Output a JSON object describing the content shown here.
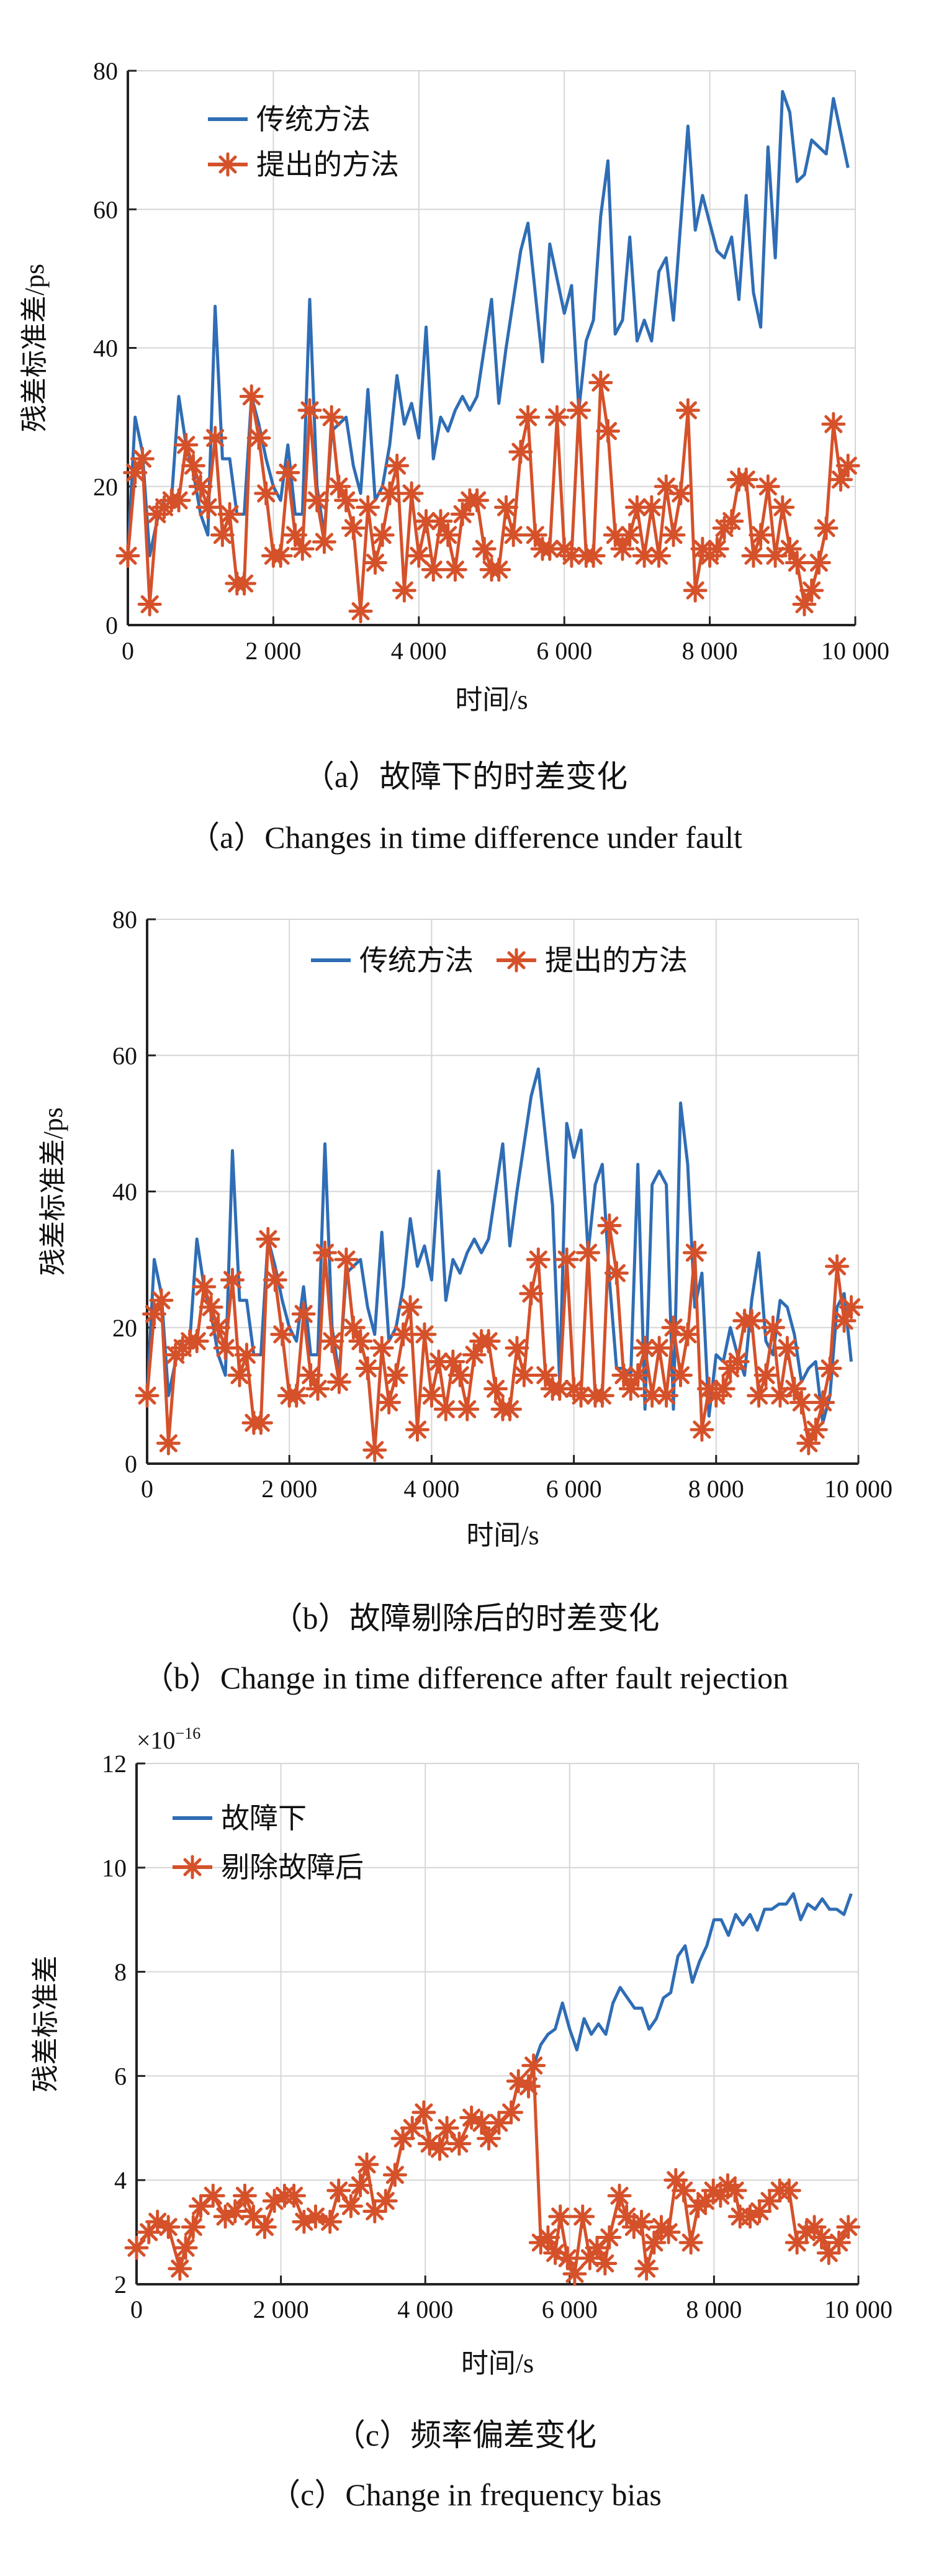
{
  "colors": {
    "traditional": "#2f6db5",
    "proposed": "#d5512a"
  },
  "chart_data": [
    {
      "type": "line",
      "id": "a",
      "xlabel": "时间/s",
      "ylabel": "残差标准差/ps",
      "xlim": [
        0,
        10000
      ],
      "ylim": [
        0,
        80
      ],
      "xticks": [
        0,
        2000,
        4000,
        6000,
        8000,
        10000
      ],
      "xtick_labels": [
        "0",
        "2 000",
        "4 000",
        "6 000",
        "8 000",
        "10 000"
      ],
      "yticks": [
        0,
        20,
        40,
        60,
        80
      ],
      "ytick_labels": [
        "0",
        "20",
        "40",
        "60",
        "80"
      ],
      "grid": true,
      "legend_position": "top-left",
      "caption_cn": "（a）故障下的时差变化",
      "caption_en": "（a）Changes in time difference under fault",
      "series": [
        {
          "name": "传统方法",
          "marker": "none",
          "x_start": 0,
          "x_step": 100,
          "values": [
            10,
            30,
            25,
            10,
            15,
            18,
            18,
            33,
            26,
            22,
            16,
            13,
            46,
            24,
            24,
            16,
            16,
            33,
            29,
            24,
            20,
            18,
            26,
            16,
            16,
            47,
            20,
            13,
            28,
            29,
            30,
            23,
            19,
            34,
            18,
            20,
            26,
            36,
            29,
            32,
            27,
            43,
            24,
            30,
            28,
            31,
            33,
            31,
            33,
            40,
            47,
            32,
            40,
            47,
            54,
            58,
            48,
            38,
            55,
            50,
            45,
            49,
            31,
            41,
            44,
            59,
            67,
            42,
            44,
            56,
            41,
            44,
            41,
            51,
            53,
            44,
            58,
            72,
            57,
            62,
            58,
            54,
            53,
            56,
            47,
            62,
            48,
            43,
            69,
            53,
            77,
            74,
            64,
            65,
            70,
            69,
            68,
            76,
            71,
            66
          ]
        },
        {
          "name": "提出的方法",
          "marker": "asterisk",
          "x_start": 0,
          "x_step": 100,
          "values": [
            10,
            22,
            24,
            3,
            16,
            17,
            18,
            18,
            26,
            23,
            20,
            17,
            27,
            13,
            16,
            6,
            6,
            33,
            27,
            19,
            10,
            10,
            22,
            13,
            11,
            31,
            18,
            12,
            30,
            20,
            18,
            14,
            2,
            17,
            9,
            13,
            19,
            23,
            5,
            19,
            10,
            15,
            8,
            15,
            13,
            8,
            16,
            18,
            18,
            11,
            8,
            8,
            17,
            13,
            25,
            30,
            13,
            11,
            11,
            30,
            11,
            10,
            31,
            10,
            10,
            35,
            28,
            13,
            11,
            13,
            17,
            10,
            17,
            10,
            20,
            13,
            19,
            31,
            5,
            11,
            10,
            11,
            14,
            15,
            21,
            21,
            10,
            13,
            20,
            10,
            17,
            11,
            9,
            3,
            5,
            9,
            14,
            29,
            21,
            23
          ]
        }
      ]
    },
    {
      "type": "line",
      "id": "b",
      "xlabel": "时间/s",
      "ylabel": "残差标准差/ps",
      "xlim": [
        0,
        10000
      ],
      "ylim": [
        0,
        80
      ],
      "xticks": [
        0,
        2000,
        4000,
        6000,
        8000,
        10000
      ],
      "xtick_labels": [
        "0",
        "2 000",
        "4 000",
        "6 000",
        "8 000",
        "10 000"
      ],
      "yticks": [
        0,
        20,
        40,
        60,
        80
      ],
      "ytick_labels": [
        "0",
        "20",
        "40",
        "60",
        "80"
      ],
      "grid": true,
      "legend_position": "top-center",
      "caption_cn": "（b）故障剔除后的时差变化",
      "caption_en": "（b）Change in time difference after fault rejection",
      "series": [
        {
          "name": "传统方法",
          "marker": "none",
          "x_start": 0,
          "x_step": 100,
          "values": [
            10,
            30,
            25,
            10,
            15,
            18,
            18,
            33,
            26,
            22,
            16,
            13,
            46,
            24,
            24,
            16,
            16,
            33,
            29,
            24,
            20,
            18,
            26,
            16,
            16,
            47,
            20,
            13,
            28,
            29,
            30,
            23,
            19,
            34,
            18,
            20,
            26,
            36,
            29,
            32,
            27,
            43,
            24,
            30,
            28,
            31,
            33,
            31,
            33,
            40,
            47,
            32,
            40,
            47,
            54,
            58,
            48,
            38,
            12,
            50,
            45,
            49,
            31,
            41,
            44,
            27,
            14,
            14,
            13,
            44,
            8,
            41,
            43,
            41,
            8,
            53,
            44,
            23,
            28,
            7,
            16,
            15,
            20,
            16,
            13,
            24,
            31,
            18,
            16,
            24,
            23,
            19,
            12,
            14,
            15,
            6,
            10,
            23,
            25,
            15
          ]
        },
        {
          "name": "提出的方法",
          "marker": "asterisk",
          "x_start": 0,
          "x_step": 100,
          "values": [
            10,
            22,
            24,
            3,
            16,
            17,
            18,
            18,
            26,
            23,
            20,
            17,
            27,
            13,
            16,
            6,
            6,
            33,
            27,
            19,
            10,
            10,
            22,
            13,
            11,
            31,
            18,
            12,
            30,
            20,
            18,
            14,
            2,
            17,
            9,
            13,
            19,
            23,
            5,
            19,
            10,
            15,
            8,
            15,
            13,
            8,
            16,
            18,
            18,
            11,
            8,
            8,
            17,
            13,
            25,
            30,
            13,
            11,
            11,
            30,
            11,
            10,
            31,
            10,
            10,
            35,
            28,
            13,
            11,
            13,
            17,
            10,
            17,
            10,
            20,
            13,
            19,
            31,
            5,
            11,
            10,
            11,
            14,
            15,
            21,
            21,
            10,
            13,
            20,
            10,
            17,
            11,
            9,
            3,
            5,
            9,
            14,
            29,
            21,
            23
          ]
        }
      ]
    },
    {
      "type": "line",
      "id": "c",
      "xlabel": "时间/s",
      "ylabel": "残差标准差",
      "y_multiplier_base": "×10",
      "y_multiplier_exp": "−16",
      "xlim": [
        0,
        10000
      ],
      "ylim": [
        2,
        12
      ],
      "xticks": [
        0,
        2000,
        4000,
        6000,
        8000,
        10000
      ],
      "xtick_labels": [
        "0",
        "2 000",
        "4 000",
        "6 000",
        "8 000",
        "10 000"
      ],
      "yticks": [
        2,
        4,
        6,
        8,
        10,
        12
      ],
      "ytick_labels": [
        "2",
        "4",
        "6",
        "8",
        "10",
        "12"
      ],
      "grid": true,
      "legend_position": "top-left",
      "caption_cn": "（c）频率偏差变化",
      "caption_en": "（c）Change in frequency bias",
      "series": [
        {
          "name": "故障下",
          "marker": "none",
          "x": [
            5500,
            5600,
            5700,
            5800,
            5900,
            6000,
            6100,
            6200,
            6300,
            6400,
            6500,
            6600,
            6700,
            6800,
            6900,
            7000,
            7100,
            7200,
            7300,
            7400,
            7500,
            7600,
            7700,
            7800,
            7900,
            8000,
            8100,
            8200,
            8300,
            8400,
            8500,
            8600,
            8700,
            8800,
            8900,
            9000,
            9100,
            9200,
            9300,
            9400,
            9500,
            9600,
            9700,
            9800,
            9900
          ],
          "values": [
            6.2,
            6.6,
            6.8,
            6.9,
            7.4,
            6.9,
            6.5,
            7.1,
            6.8,
            7.0,
            6.8,
            7.4,
            7.7,
            7.5,
            7.3,
            7.3,
            6.9,
            7.1,
            7.5,
            7.6,
            8.3,
            8.5,
            7.8,
            8.2,
            8.5,
            9.0,
            9.0,
            8.7,
            9.1,
            8.9,
            9.1,
            8.8,
            9.2,
            9.2,
            9.3,
            9.3,
            9.5,
            9.0,
            9.3,
            9.2,
            9.4,
            9.2,
            9.2,
            9.1,
            9.5
          ]
        },
        {
          "name": "剔除故障后",
          "marker": "asterisk",
          "x": [
            0,
            170,
            290,
            440,
            600,
            680,
            785,
            890,
            1060,
            1230,
            1365,
            1500,
            1620,
            1775,
            1910,
            2050,
            2180,
            2320,
            2480,
            2680,
            2800,
            2970,
            3100,
            3190,
            3300,
            3450,
            3580,
            3690,
            3820,
            3980,
            4060,
            4200,
            4300,
            4470,
            4640,
            4780,
            4880,
            5020,
            5190,
            5290,
            5430,
            5500,
            5600,
            5700,
            5800,
            5870,
            5970,
            6070,
            6180,
            6280,
            6380,
            6490,
            6550,
            6690,
            6790,
            6890,
            6995,
            7065,
            7170,
            7270,
            7370,
            7470,
            7580,
            7680,
            7780,
            7880,
            7990,
            8090,
            8190,
            8290,
            8360,
            8500,
            8630,
            8770,
            8910,
            9040,
            9150,
            9280,
            9390,
            9490,
            9590,
            9730,
            9860
          ],
          "values": [
            2.7,
            3.0,
            3.2,
            3.1,
            2.3,
            2.7,
            3.1,
            3.5,
            3.7,
            3.3,
            3.4,
            3.7,
            3.3,
            3.1,
            3.6,
            3.7,
            3.7,
            3.2,
            3.3,
            3.2,
            3.8,
            3.5,
            3.9,
            4.3,
            3.4,
            3.6,
            4.1,
            4.8,
            5.0,
            5.3,
            4.7,
            4.6,
            5.0,
            4.7,
            5.2,
            5.1,
            4.8,
            5.1,
            5.3,
            5.9,
            5.8,
            6.2,
            2.8,
            2.9,
            2.6,
            3.3,
            2.5,
            2.2,
            3.3,
            2.5,
            2.7,
            2.4,
            2.9,
            3.7,
            3.3,
            3.1,
            3.2,
            2.3,
            2.8,
            3.1,
            3.0,
            4.0,
            3.8,
            2.8,
            3.5,
            3.6,
            3.8,
            3.7,
            3.9,
            3.8,
            3.3,
            3.3,
            3.4,
            3.6,
            3.8,
            3.8,
            2.8,
            3.0,
            3.1,
            2.9,
            2.6,
            2.8,
            3.1
          ]
        }
      ]
    }
  ]
}
